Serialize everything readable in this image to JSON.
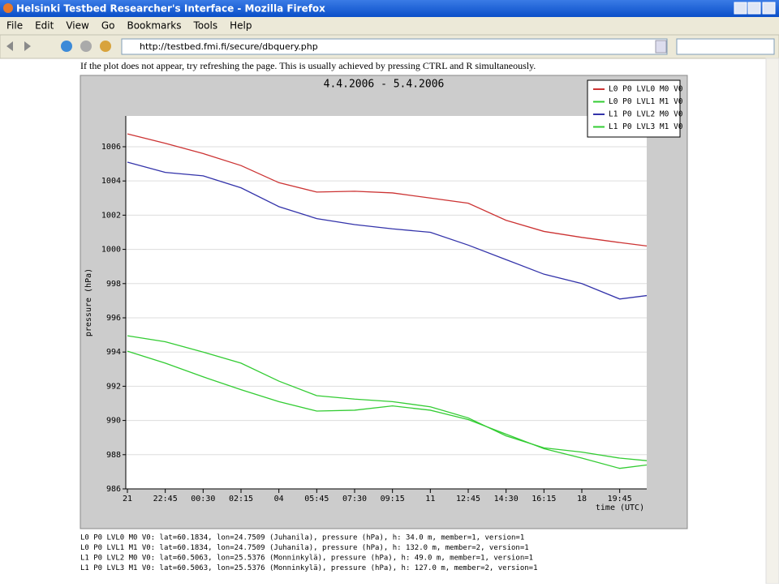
{
  "window": {
    "title": "Helsinki Testbed Researcher's Interface - Mozilla Firefox",
    "menu": [
      "File",
      "Edit",
      "View",
      "Go",
      "Bookmarks",
      "Tools",
      "Help"
    ],
    "url": "http://testbed.fmi.fi/secure/dbquery.php"
  },
  "page": {
    "notice": "If the plot does not appear, try refreshing the page. This is usually achieved by pressing CTRL and R simultaneously.",
    "footnotes": [
      "L0 P0 LVL0 M0 V0: lat=60.1834, lon=24.7509 (Juhanila), pressure (hPa), h: 34.0 m, member=1, version=1",
      "L0 P0 LVL1 M1 V0: lat=60.1834, lon=24.7509 (Juhanila), pressure (hPa), h: 132.0 m, member=2, version=1",
      "L1 P0 LVL2 M0 V0: lat=60.5063, lon=25.5376 (Monninkylä), pressure (hPa), h: 49.0 m, member=1, version=1",
      "L1 P0 LVL3 M1 V0: lat=60.5063, lon=25.5376 (Monninkylä), pressure (hPa), h: 127.0 m, member=2, version=1"
    ]
  },
  "chart_data": {
    "type": "line",
    "title": "4.4.2006 - 5.4.2006",
    "x_label": "time (UTC)",
    "y_label": "pressure (hPa)",
    "x": [
      0,
      1.75,
      3.5,
      5.25,
      7,
      8.75,
      10.5,
      12.25,
      14,
      15.75,
      17.5,
      19.25,
      21,
      22.75,
      24
    ],
    "series": [
      {
        "name": "L0 P0 LVL0 M0 V0",
        "color": "#cc3333",
        "values": [
          1006.75,
          1006.2,
          1005.6,
          1004.9,
          1003.9,
          1003.35,
          1003.4,
          1003.3,
          1003.0,
          1002.7,
          1001.7,
          1001.05,
          1000.7,
          1000.4,
          1000.2
        ]
      },
      {
        "name": "L0 P0 LVL1 M1 V0",
        "color": "#33cc33",
        "values": [
          994.95,
          994.6,
          994.0,
          993.35,
          992.3,
          991.45,
          991.25,
          991.1,
          990.8,
          990.15,
          989.1,
          988.4,
          988.15,
          987.8,
          987.65
        ]
      },
      {
        "name": "L1 P0 LVL2 M0 V0",
        "color": "#3333aa",
        "values": [
          1005.1,
          1004.5,
          1004.3,
          1003.6,
          1002.5,
          1001.8,
          1001.45,
          1001.2,
          1001.0,
          1000.25,
          999.4,
          998.55,
          998.0,
          997.1,
          997.3
        ]
      },
      {
        "name": "L1 P0 LVL3 M1 V0",
        "color": "#33cc33",
        "values": [
          994.05,
          993.35,
          992.55,
          991.8,
          991.1,
          990.55,
          990.6,
          990.85,
          990.6,
          990.05,
          989.2,
          988.35,
          987.8,
          987.2,
          987.4
        ]
      }
    ],
    "xlim": [
      0,
      24
    ],
    "xticks": [
      {
        "value": 0,
        "label": "21"
      },
      {
        "value": 1.75,
        "label": "22:45"
      },
      {
        "value": 3.5,
        "label": "00:30"
      },
      {
        "value": 5.25,
        "label": "02:15"
      },
      {
        "value": 7,
        "label": "04"
      },
      {
        "value": 8.75,
        "label": "05:45"
      },
      {
        "value": 10.5,
        "label": "07:30"
      },
      {
        "value": 12.25,
        "label": "09:15"
      },
      {
        "value": 14,
        "label": "11"
      },
      {
        "value": 15.75,
        "label": "12:45"
      },
      {
        "value": 17.5,
        "label": "14:30"
      },
      {
        "value": 19.25,
        "label": "16:15"
      },
      {
        "value": 21,
        "label": "18"
      },
      {
        "value": 22.75,
        "label": "19:45"
      }
    ],
    "ylim": [
      986,
      1007.8
    ],
    "yticks": [
      986,
      988,
      990,
      992,
      994,
      996,
      998,
      1000,
      1002,
      1004,
      1006
    ],
    "grid": true,
    "legend": "upper right"
  }
}
